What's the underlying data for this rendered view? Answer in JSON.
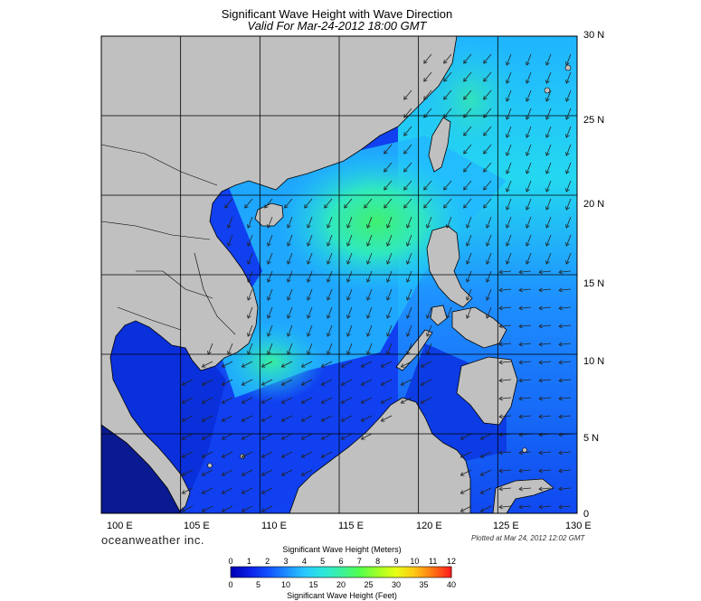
{
  "header": {
    "title": "Significant Wave Height with Wave Direction",
    "subtitle": "Valid For Mar-24-2012 18:00 GMT"
  },
  "axes": {
    "longitude_labels": [
      "100 E",
      "105 E",
      "110 E",
      "115 E",
      "120 E",
      "125 E",
      "130 E"
    ],
    "latitude_labels": [
      "30 N",
      "25 N",
      "20 N",
      "15 N",
      "10 N",
      "5 N",
      "0"
    ]
  },
  "footer": {
    "brand": "oceanweather inc.",
    "plotted": "Plotted at Mar 24, 2012 12:02 GMT"
  },
  "colorbar": {
    "title_top": "Significant Wave Height (Meters)",
    "title_bottom": "Significant Wave Height (Feet)",
    "meters_ticks": [
      "0",
      "1",
      "2",
      "3",
      "4",
      "5",
      "6",
      "7",
      "8",
      "9",
      "10",
      "11",
      "12"
    ],
    "feet_ticks": [
      "0",
      "5",
      "10",
      "15",
      "20",
      "25",
      "30",
      "35",
      "40"
    ],
    "colors": [
      "#0000b4",
      "#0a20e6",
      "#1450ff",
      "#1e8cff",
      "#28c8ff",
      "#2de6dc",
      "#3cf0a0",
      "#50ff50",
      "#a0ff28",
      "#e6ff14",
      "#ffc814",
      "#ff7814",
      "#ff1e1e"
    ]
  },
  "map": {
    "land_color": "#c0c0c0",
    "ocean_low_color": "#0a28e6",
    "ocean_mid_color": "#1ec8ff",
    "ocean_high_color": "#3cf080",
    "arrow_color": "#222222",
    "grid_color": "#000000"
  }
}
